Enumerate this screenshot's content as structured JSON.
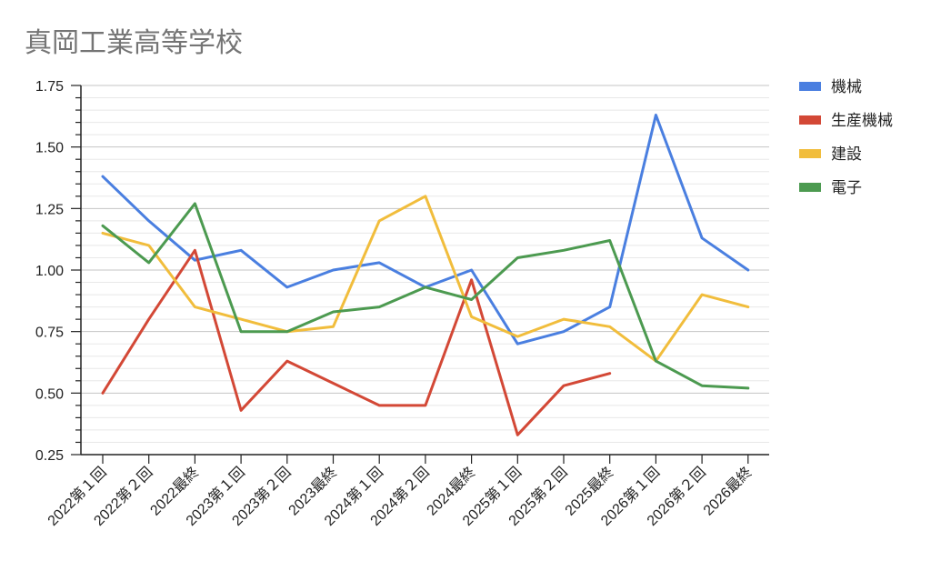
{
  "chart_data": {
    "type": "line",
    "title": "真岡工業高等学校",
    "categories": [
      "2022第１回",
      "2022第２回",
      "2022最終",
      "2023第１回",
      "2023第２回",
      "2023最終",
      "2024第１回",
      "2024第２回",
      "2024最終",
      "2025第１回",
      "2025第２回",
      "2025最終",
      "2026第１回",
      "2026第２回",
      "2026最終"
    ],
    "series": [
      {
        "name": "機械",
        "color": "#4a7fe0",
        "values": [
          1.38,
          1.2,
          1.04,
          1.08,
          0.93,
          1.0,
          1.03,
          0.93,
          1.0,
          0.7,
          0.75,
          0.85,
          1.63,
          1.13,
          1.0
        ]
      },
      {
        "name": "生産機械",
        "color": "#d34836",
        "values": [
          0.5,
          0.8,
          1.08,
          0.43,
          0.63,
          0.54,
          0.45,
          0.45,
          0.96,
          0.33,
          0.53,
          0.58,
          null,
          null,
          null
        ]
      },
      {
        "name": "建設",
        "color": "#f1bd3c",
        "values": [
          1.15,
          1.1,
          0.85,
          0.8,
          0.75,
          0.77,
          1.2,
          1.3,
          0.81,
          0.73,
          0.8,
          0.77,
          0.63,
          0.9,
          0.85
        ]
      },
      {
        "name": "電子",
        "color": "#4c9a50",
        "values": [
          1.18,
          1.03,
          1.27,
          0.75,
          0.75,
          0.83,
          0.85,
          0.93,
          0.88,
          1.05,
          1.08,
          1.12,
          0.63,
          0.53,
          0.52
        ]
      }
    ],
    "ylim": [
      0.25,
      1.75
    ],
    "y_ticks": [
      "0.25",
      "0.50",
      "0.75",
      "1.00",
      "1.25",
      "1.50",
      "1.75"
    ],
    "grid": true,
    "legend_position": "right"
  }
}
